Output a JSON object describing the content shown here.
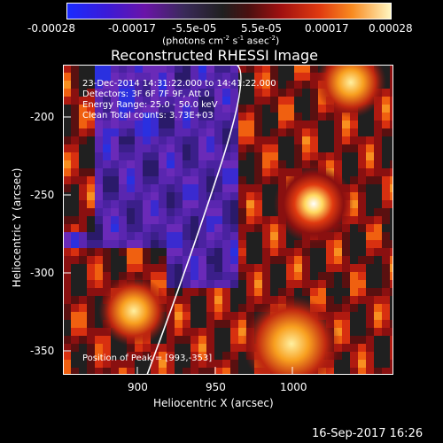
{
  "colorbar": {
    "ticks": [
      "-0.00028",
      "-0.00017",
      "-5.5e-05",
      "5.5e-05",
      "0.00017",
      "0.00028"
    ],
    "units_prefix": "(photons cm",
    "units_sup1": "-2",
    "units_mid1": " s",
    "units_sup2": "-1",
    "units_mid2": " asec",
    "units_sup3": "-2",
    "units_suffix": ")"
  },
  "plot": {
    "title": "Reconstructed RHESSI Image",
    "info_lines": [
      "23-Dec-2014 14:31:22.000 to 14:41:22.000",
      "Detectors: 3F 6F 7F 9F, Att 0",
      "Energy Range: 25.0 - 50.0 keV",
      "Clean    Total counts: 3.73E+03"
    ],
    "peak_label": "Position of Peak = [993,-353]",
    "xlabel": "Heliocentric X (arcsec)",
    "ylabel": "Heliocentric Y (arcsec)",
    "xticks": [
      "900",
      "950",
      "1000"
    ],
    "yticks": [
      "-200",
      "-250",
      "-300",
      "-350"
    ]
  },
  "footer": {
    "timestamp": "16-Sep-2017 16:26"
  }
}
